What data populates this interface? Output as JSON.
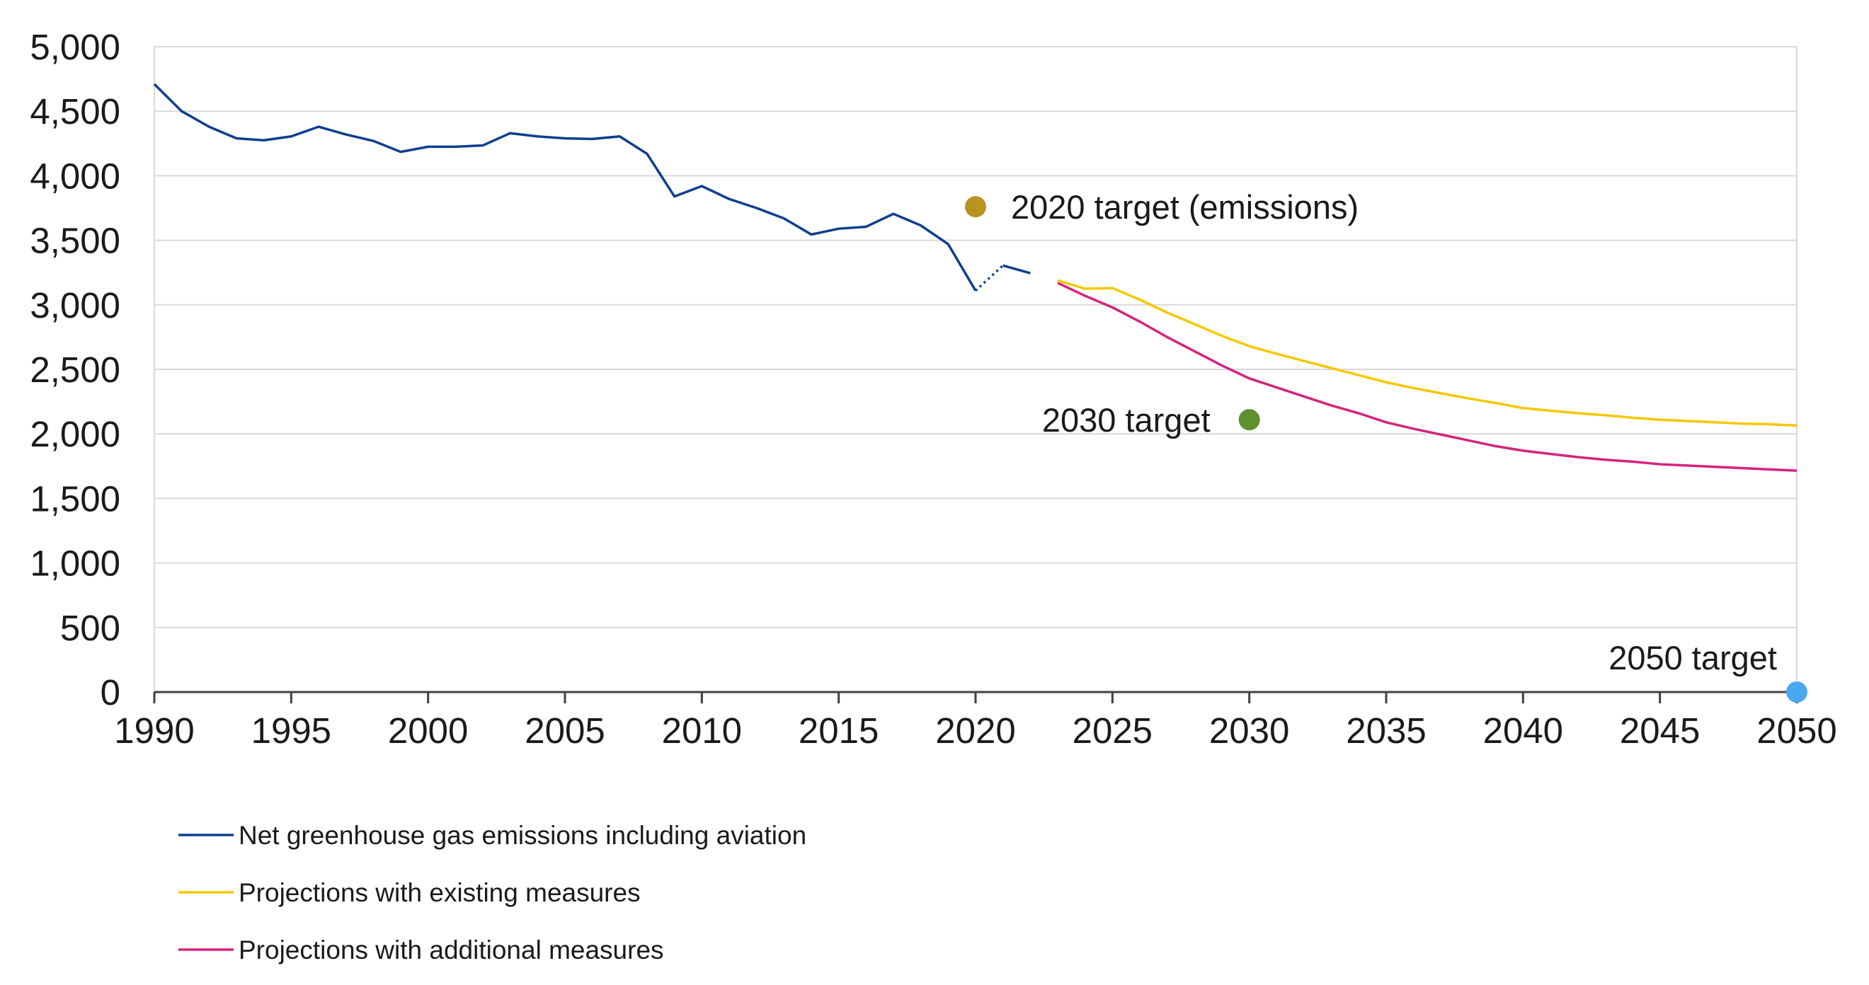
{
  "chart_data": {
    "type": "line",
    "title": "",
    "xlabel": "",
    "ylabel": "",
    "xlim": [
      1990,
      2050
    ],
    "ylim": [
      0,
      5000
    ],
    "grid": true,
    "legend_position": "bottom-left",
    "x_ticks": [
      "1990",
      "1995",
      "2000",
      "2005",
      "2010",
      "2015",
      "2020",
      "2025",
      "2030",
      "2035",
      "2040",
      "2045",
      "2050"
    ],
    "y_ticks": [
      "0",
      "500",
      "1,000",
      "1,500",
      "2,000",
      "2,500",
      "3,000",
      "3,500",
      "4,000",
      "4,500",
      "5,000"
    ],
    "series": [
      {
        "name": "Net greenhouse gas emissions including aviation",
        "color": "#0d3f8f",
        "x": [
          1990,
          1991,
          1992,
          1993,
          1994,
          1995,
          1996,
          1997,
          1998,
          1999,
          2000,
          2001,
          2002,
          2003,
          2004,
          2005,
          2006,
          2007,
          2008,
          2009,
          2010,
          2011,
          2012,
          2013,
          2014,
          2015,
          2016,
          2017,
          2018,
          2019,
          2020,
          2021,
          2022
        ],
        "values": [
          4710,
          4500,
          4380,
          4290,
          4275,
          4305,
          4380,
          4320,
          4270,
          4185,
          4225,
          4225,
          4235,
          4330,
          4305,
          4290,
          4285,
          4305,
          4170,
          3840,
          3920,
          3820,
          3750,
          3670,
          3545,
          3590,
          3605,
          3705,
          3615,
          3470,
          3110,
          3305,
          3245
        ],
        "note": "dotted segment between 2020 and 2021, gap between 2022 and 2023"
      },
      {
        "name": "Projections with existing measures",
        "color": "#f5c800",
        "x": [
          2023,
          2024,
          2025,
          2026,
          2027,
          2028,
          2029,
          2030,
          2031,
          2032,
          2033,
          2034,
          2035,
          2036,
          2037,
          2038,
          2039,
          2040,
          2041,
          2042,
          2043,
          2044,
          2045,
          2046,
          2047,
          2048,
          2049,
          2050
        ],
        "values": [
          3190,
          3125,
          3130,
          3040,
          2940,
          2850,
          2760,
          2680,
          2620,
          2565,
          2510,
          2455,
          2400,
          2355,
          2315,
          2275,
          2240,
          2200,
          2180,
          2160,
          2145,
          2125,
          2110,
          2100,
          2090,
          2080,
          2075,
          2065
        ]
      },
      {
        "name": "Projections with additional measures",
        "color": "#d4247c",
        "x": [
          2023,
          2024,
          2025,
          2026,
          2027,
          2028,
          2029,
          2030,
          2031,
          2032,
          2033,
          2034,
          2035,
          2036,
          2037,
          2038,
          2039,
          2040,
          2041,
          2042,
          2043,
          2044,
          2045,
          2046,
          2047,
          2048,
          2049,
          2050
        ],
        "values": [
          3170,
          3070,
          2980,
          2870,
          2750,
          2640,
          2530,
          2430,
          2360,
          2290,
          2220,
          2160,
          2090,
          2040,
          1995,
          1950,
          1905,
          1870,
          1845,
          1820,
          1800,
          1785,
          1765,
          1755,
          1745,
          1735,
          1725,
          1715
        ]
      }
    ],
    "targets": [
      {
        "label": "2020 target (emissions)",
        "x": 2020,
        "y": 3760,
        "color": "#b8941f"
      },
      {
        "label": "2030 target",
        "x": 2030,
        "y": 2110,
        "color": "#5f8f2f"
      },
      {
        "label": "2050 target",
        "x": 2050,
        "y": 0,
        "color": "#4aa8f0"
      }
    ]
  }
}
